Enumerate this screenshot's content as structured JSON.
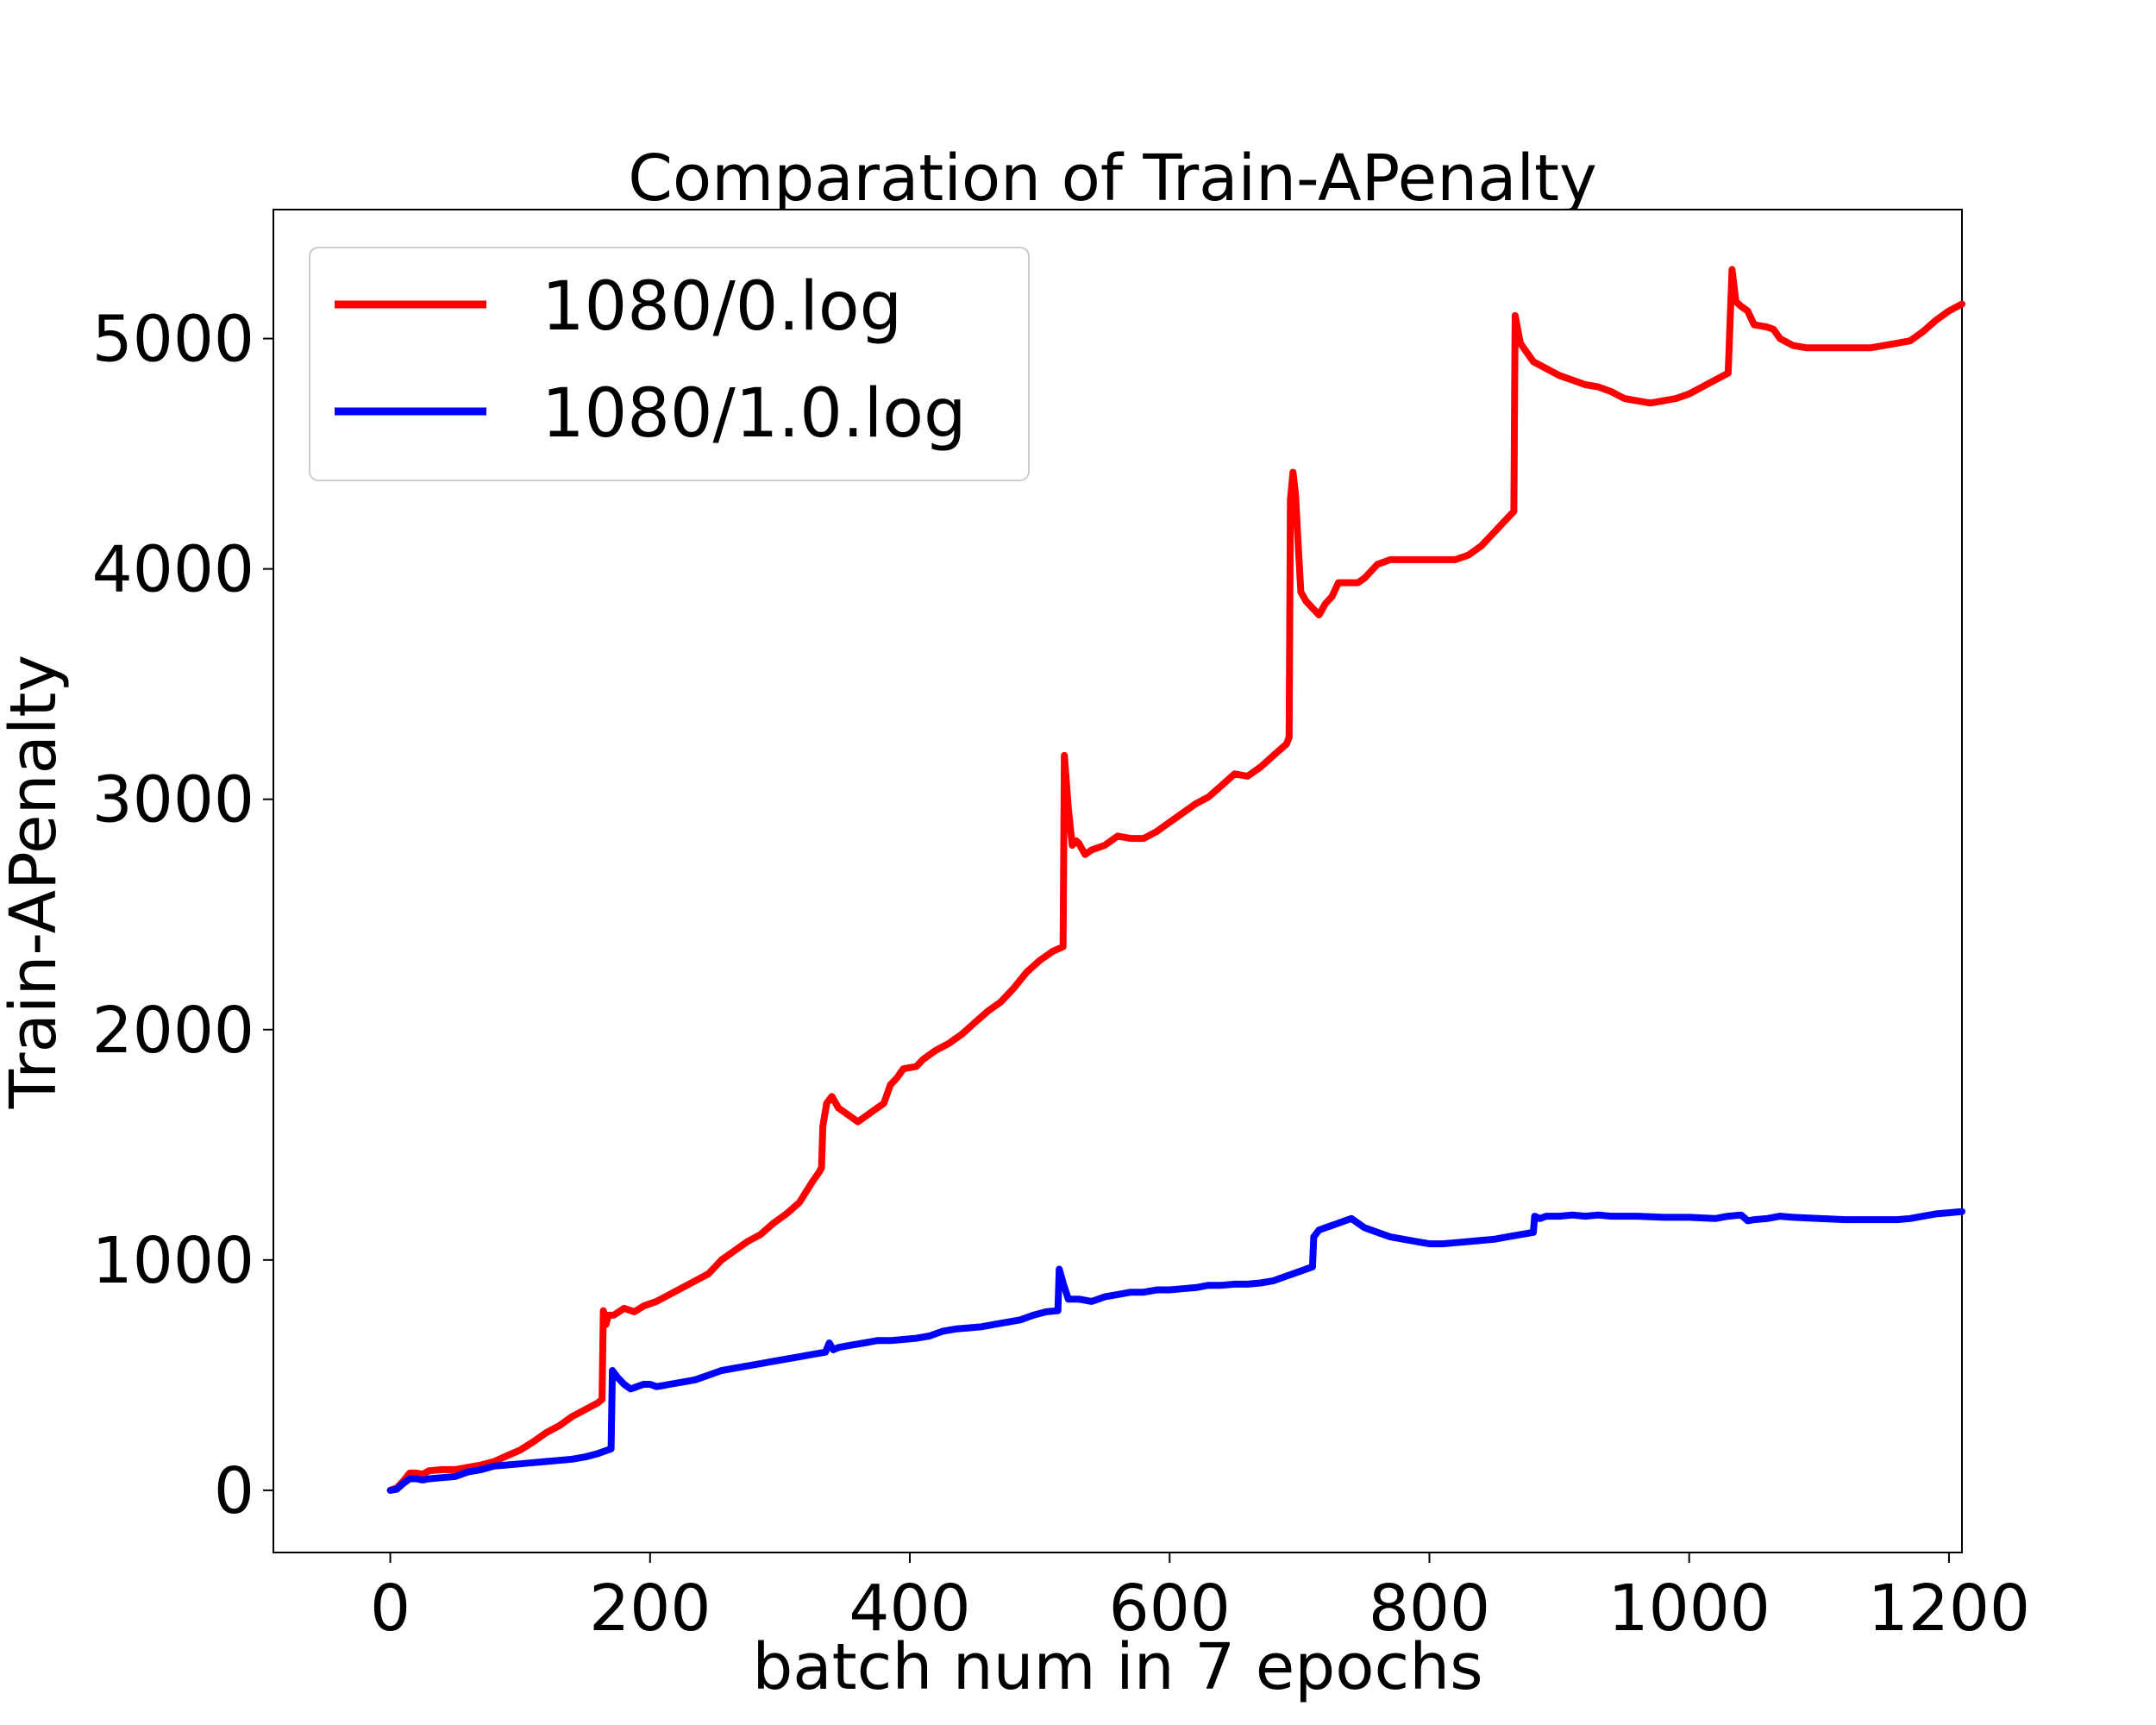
{
  "chart_data": {
    "type": "line",
    "title": "Comparation of Train-APenalty",
    "xlabel": "batch num in 7 epochs",
    "ylabel": "Train-APenalty",
    "xlim": [
      -90,
      1210
    ],
    "ylim": [
      -270,
      5560
    ],
    "xticks": [
      0,
      200,
      400,
      600,
      800,
      1000,
      1200
    ],
    "yticks": [
      0,
      1000,
      2000,
      3000,
      4000,
      5000
    ],
    "grid": false,
    "legend_position": "top-left",
    "series": [
      {
        "name": "1080/0.log",
        "color": "#ff0000",
        "points": [
          [
            0,
            0
          ],
          [
            5,
            10
          ],
          [
            10,
            40
          ],
          [
            15,
            75
          ],
          [
            20,
            75
          ],
          [
            25,
            70
          ],
          [
            30,
            85
          ],
          [
            40,
            90
          ],
          [
            50,
            90
          ],
          [
            60,
            100
          ],
          [
            70,
            110
          ],
          [
            80,
            125
          ],
          [
            90,
            150
          ],
          [
            100,
            175
          ],
          [
            110,
            210
          ],
          [
            120,
            250
          ],
          [
            130,
            280
          ],
          [
            140,
            320
          ],
          [
            150,
            350
          ],
          [
            160,
            380
          ],
          [
            163,
            395
          ],
          [
            164,
            780
          ],
          [
            166,
            720
          ],
          [
            168,
            760
          ],
          [
            172,
            760
          ],
          [
            180,
            790
          ],
          [
            188,
            775
          ],
          [
            195,
            800
          ],
          [
            205,
            820
          ],
          [
            215,
            850
          ],
          [
            225,
            880
          ],
          [
            235,
            910
          ],
          [
            245,
            940
          ],
          [
            255,
            1000
          ],
          [
            265,
            1040
          ],
          [
            275,
            1080
          ],
          [
            285,
            1110
          ],
          [
            295,
            1160
          ],
          [
            305,
            1200
          ],
          [
            315,
            1250
          ],
          [
            325,
            1340
          ],
          [
            330,
            1380
          ],
          [
            332,
            1400
          ],
          [
            333,
            1580
          ],
          [
            336,
            1680
          ],
          [
            340,
            1710
          ],
          [
            345,
            1660
          ],
          [
            350,
            1640
          ],
          [
            360,
            1600
          ],
          [
            370,
            1640
          ],
          [
            380,
            1680
          ],
          [
            385,
            1760
          ],
          [
            390,
            1790
          ],
          [
            395,
            1830
          ],
          [
            405,
            1840
          ],
          [
            410,
            1870
          ],
          [
            420,
            1910
          ],
          [
            430,
            1940
          ],
          [
            440,
            1980
          ],
          [
            450,
            2030
          ],
          [
            460,
            2080
          ],
          [
            470,
            2120
          ],
          [
            480,
            2180
          ],
          [
            490,
            2250
          ],
          [
            500,
            2300
          ],
          [
            510,
            2340
          ],
          [
            518,
            2360
          ],
          [
            519,
            3190
          ],
          [
            522,
            2960
          ],
          [
            525,
            2800
          ],
          [
            528,
            2820
          ],
          [
            530,
            2810
          ],
          [
            535,
            2760
          ],
          [
            540,
            2780
          ],
          [
            550,
            2800
          ],
          [
            560,
            2840
          ],
          [
            570,
            2830
          ],
          [
            580,
            2830
          ],
          [
            590,
            2860
          ],
          [
            600,
            2900
          ],
          [
            610,
            2940
          ],
          [
            620,
            2980
          ],
          [
            630,
            3010
          ],
          [
            640,
            3060
          ],
          [
            650,
            3110
          ],
          [
            660,
            3100
          ],
          [
            670,
            3140
          ],
          [
            680,
            3190
          ],
          [
            690,
            3240
          ],
          [
            692,
            3270
          ],
          [
            693,
            4300
          ],
          [
            695,
            4420
          ],
          [
            697,
            4320
          ],
          [
            699,
            4100
          ],
          [
            701,
            3900
          ],
          [
            705,
            3860
          ],
          [
            710,
            3830
          ],
          [
            715,
            3800
          ],
          [
            720,
            3850
          ],
          [
            725,
            3880
          ],
          [
            730,
            3940
          ],
          [
            740,
            3940
          ],
          [
            745,
            3940
          ],
          [
            750,
            3960
          ],
          [
            760,
            4020
          ],
          [
            770,
            4040
          ],
          [
            780,
            4040
          ],
          [
            790,
            4040
          ],
          [
            800,
            4040
          ],
          [
            810,
            4040
          ],
          [
            820,
            4040
          ],
          [
            830,
            4060
          ],
          [
            840,
            4100
          ],
          [
            850,
            4160
          ],
          [
            860,
            4220
          ],
          [
            865,
            4250
          ],
          [
            866,
            5100
          ],
          [
            870,
            4980
          ],
          [
            875,
            4940
          ],
          [
            880,
            4900
          ],
          [
            890,
            4870
          ],
          [
            900,
            4840
          ],
          [
            910,
            4820
          ],
          [
            920,
            4800
          ],
          [
            930,
            4790
          ],
          [
            940,
            4770
          ],
          [
            950,
            4740
          ],
          [
            960,
            4730
          ],
          [
            970,
            4720
          ],
          [
            980,
            4730
          ],
          [
            990,
            4740
          ],
          [
            1000,
            4760
          ],
          [
            1010,
            4790
          ],
          [
            1020,
            4820
          ],
          [
            1030,
            4850
          ],
          [
            1033,
            5300
          ],
          [
            1036,
            5160
          ],
          [
            1040,
            5140
          ],
          [
            1045,
            5120
          ],
          [
            1050,
            5060
          ],
          [
            1060,
            5050
          ],
          [
            1065,
            5040
          ],
          [
            1070,
            5000
          ],
          [
            1080,
            4970
          ],
          [
            1090,
            4960
          ],
          [
            1100,
            4960
          ],
          [
            1120,
            4960
          ],
          [
            1140,
            4960
          ],
          [
            1160,
            4980
          ],
          [
            1170,
            4990
          ],
          [
            1180,
            5030
          ],
          [
            1190,
            5080
          ],
          [
            1200,
            5120
          ],
          [
            1210,
            5150
          ]
        ]
      },
      {
        "name": "1080/1.0.log",
        "color": "#0000ff",
        "points": [
          [
            0,
            0
          ],
          [
            5,
            5
          ],
          [
            10,
            30
          ],
          [
            15,
            50
          ],
          [
            20,
            50
          ],
          [
            25,
            45
          ],
          [
            30,
            50
          ],
          [
            40,
            55
          ],
          [
            50,
            60
          ],
          [
            60,
            80
          ],
          [
            70,
            90
          ],
          [
            80,
            105
          ],
          [
            90,
            110
          ],
          [
            100,
            115
          ],
          [
            110,
            120
          ],
          [
            120,
            125
          ],
          [
            130,
            130
          ],
          [
            140,
            135
          ],
          [
            150,
            145
          ],
          [
            160,
            160
          ],
          [
            170,
            180
          ],
          [
            171,
            520
          ],
          [
            175,
            490
          ],
          [
            180,
            460
          ],
          [
            185,
            440
          ],
          [
            190,
            450
          ],
          [
            195,
            460
          ],
          [
            200,
            460
          ],
          [
            205,
            450
          ],
          [
            210,
            455
          ],
          [
            215,
            460
          ],
          [
            225,
            470
          ],
          [
            235,
            480
          ],
          [
            245,
            500
          ],
          [
            255,
            520
          ],
          [
            265,
            530
          ],
          [
            275,
            540
          ],
          [
            285,
            550
          ],
          [
            295,
            560
          ],
          [
            305,
            570
          ],
          [
            315,
            580
          ],
          [
            325,
            590
          ],
          [
            335,
            600
          ],
          [
            338,
            640
          ],
          [
            341,
            610
          ],
          [
            345,
            620
          ],
          [
            355,
            630
          ],
          [
            365,
            640
          ],
          [
            375,
            650
          ],
          [
            385,
            650
          ],
          [
            395,
            655
          ],
          [
            405,
            660
          ],
          [
            415,
            670
          ],
          [
            425,
            690
          ],
          [
            435,
            700
          ],
          [
            445,
            705
          ],
          [
            455,
            710
          ],
          [
            465,
            720
          ],
          [
            475,
            730
          ],
          [
            485,
            740
          ],
          [
            495,
            760
          ],
          [
            505,
            775
          ],
          [
            514,
            780
          ],
          [
            515,
            960
          ],
          [
            518,
            900
          ],
          [
            522,
            830
          ],
          [
            530,
            830
          ],
          [
            540,
            820
          ],
          [
            550,
            840
          ],
          [
            560,
            850
          ],
          [
            570,
            860
          ],
          [
            580,
            860
          ],
          [
            590,
            870
          ],
          [
            600,
            870
          ],
          [
            610,
            875
          ],
          [
            620,
            880
          ],
          [
            630,
            890
          ],
          [
            640,
            890
          ],
          [
            650,
            895
          ],
          [
            660,
            895
          ],
          [
            670,
            900
          ],
          [
            680,
            910
          ],
          [
            690,
            930
          ],
          [
            700,
            950
          ],
          [
            710,
            970
          ],
          [
            711,
            1100
          ],
          [
            715,
            1130
          ],
          [
            720,
            1140
          ],
          [
            725,
            1150
          ],
          [
            730,
            1160
          ],
          [
            735,
            1170
          ],
          [
            740,
            1180
          ],
          [
            745,
            1160
          ],
          [
            750,
            1140
          ],
          [
            760,
            1120
          ],
          [
            770,
            1100
          ],
          [
            780,
            1090
          ],
          [
            790,
            1080
          ],
          [
            800,
            1070
          ],
          [
            810,
            1070
          ],
          [
            820,
            1075
          ],
          [
            830,
            1080
          ],
          [
            840,
            1085
          ],
          [
            850,
            1090
          ],
          [
            860,
            1100
          ],
          [
            870,
            1110
          ],
          [
            880,
            1120
          ],
          [
            881,
            1190
          ],
          [
            885,
            1180
          ],
          [
            890,
            1190
          ],
          [
            900,
            1190
          ],
          [
            910,
            1195
          ],
          [
            920,
            1190
          ],
          [
            930,
            1195
          ],
          [
            940,
            1190
          ],
          [
            960,
            1190
          ],
          [
            980,
            1185
          ],
          [
            1000,
            1185
          ],
          [
            1020,
            1180
          ],
          [
            1030,
            1190
          ],
          [
            1040,
            1195
          ],
          [
            1045,
            1170
          ],
          [
            1050,
            1175
          ],
          [
            1060,
            1180
          ],
          [
            1070,
            1190
          ],
          [
            1080,
            1185
          ],
          [
            1100,
            1180
          ],
          [
            1120,
            1175
          ],
          [
            1140,
            1175
          ],
          [
            1160,
            1175
          ],
          [
            1170,
            1180
          ],
          [
            1180,
            1190
          ],
          [
            1190,
            1200
          ],
          [
            1200,
            1205
          ],
          [
            1210,
            1210
          ]
        ]
      }
    ]
  }
}
